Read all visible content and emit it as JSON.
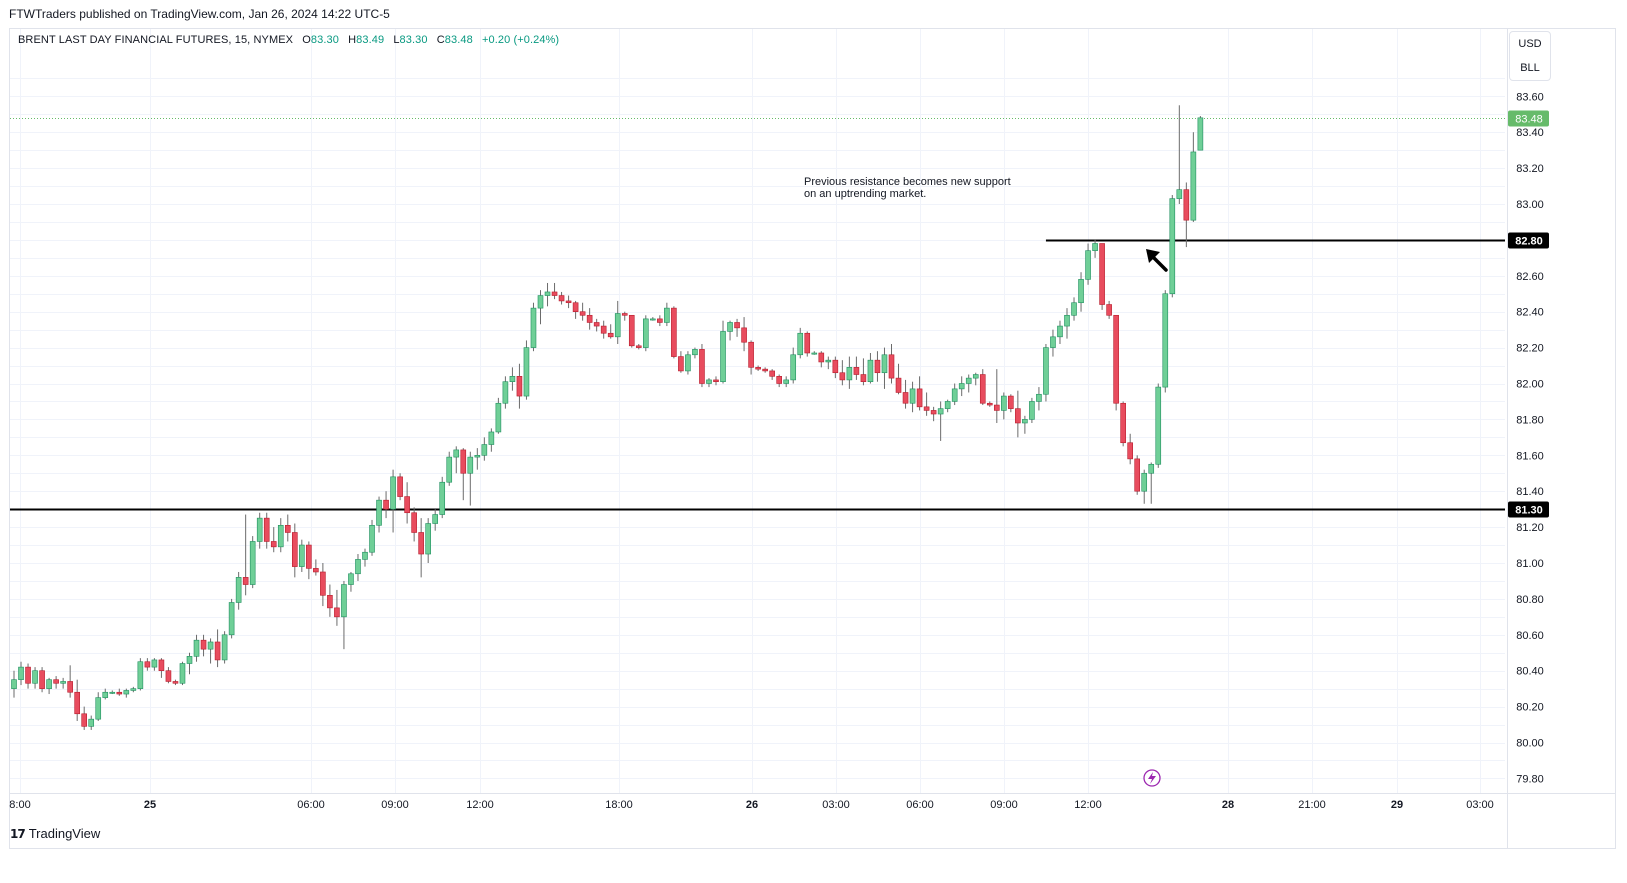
{
  "publisher_line": "FTWTraders published on TradingView.com, Jan 26, 2024 14:22 UTC-5",
  "legend": {
    "symbol": "BRENT LAST DAY FINANCIAL FUTURES, 15, NYMEX",
    "open_label": "O",
    "open": "83.30",
    "high_label": "H",
    "high": "83.49",
    "low_label": "L",
    "low": "83.30",
    "close_label": "C",
    "close": "83.48",
    "change": "+0.20 (+0.24%)"
  },
  "unit_selector": {
    "currency": "USD",
    "unit": "BLL"
  },
  "annotation": {
    "line1": "Previous resistance becomes new support",
    "line2": "on an uptrending market."
  },
  "footer": {
    "brand": "TradingView"
  },
  "colors": {
    "up": "#26a69a",
    "down": "#ef5350",
    "up_fill": "#6fcf97",
    "down_fill": "#e84c5e",
    "last_price": "#66bb6a"
  },
  "chart_data": {
    "type": "candlestick",
    "interval": "15",
    "ylim": [
      79.75,
      83.72
    ],
    "y_ticks": [
      "83.60",
      "83.40",
      "83.20",
      "83.00",
      "82.60",
      "82.40",
      "82.20",
      "82.00",
      "81.80",
      "81.60",
      "81.40",
      "81.20",
      "81.00",
      "80.80",
      "80.60",
      "80.40",
      "80.20",
      "80.00",
      "79.80"
    ],
    "x_ticks": [
      "8:00",
      "25",
      "06:00",
      "09:00",
      "12:00",
      "18:00",
      "26",
      "03:00",
      "06:00",
      "09:00",
      "12:00",
      "28",
      "21:00",
      "29",
      "03:00"
    ],
    "bold_x_ticks": [
      "25",
      "26",
      "28",
      "29"
    ],
    "horizontal_levels": [
      {
        "price": 81.3,
        "label": "81.30",
        "start_index": 0
      },
      {
        "price": 82.8,
        "label": "82.80",
        "start_index": 147
      }
    ],
    "last_price": {
      "price": 83.48,
      "label": "83.48"
    },
    "candles": [
      [
        80.3,
        80.4,
        80.25,
        80.35
      ],
      [
        80.35,
        80.45,
        80.32,
        80.42
      ],
      [
        80.42,
        80.44,
        80.3,
        80.33
      ],
      [
        80.33,
        80.42,
        80.3,
        80.4
      ],
      [
        80.4,
        80.42,
        80.28,
        80.3
      ],
      [
        80.3,
        80.36,
        80.27,
        80.35
      ],
      [
        80.35,
        80.37,
        80.3,
        80.33
      ],
      [
        80.33,
        80.36,
        80.3,
        80.34
      ],
      [
        80.34,
        80.43,
        80.25,
        80.28
      ],
      [
        80.28,
        80.35,
        80.12,
        80.16
      ],
      [
        80.16,
        80.2,
        80.07,
        80.09
      ],
      [
        80.09,
        80.15,
        80.07,
        80.13
      ],
      [
        80.13,
        80.28,
        80.12,
        80.25
      ],
      [
        80.25,
        80.3,
        80.24,
        80.28
      ],
      [
        80.28,
        80.29,
        80.27,
        80.28
      ],
      [
        80.28,
        80.3,
        80.26,
        80.27
      ],
      [
        80.27,
        80.3,
        80.25,
        80.29
      ],
      [
        80.29,
        80.31,
        80.28,
        80.3
      ],
      [
        80.3,
        80.47,
        80.29,
        80.45
      ],
      [
        80.45,
        80.47,
        80.4,
        80.42
      ],
      [
        80.42,
        80.47,
        80.4,
        80.46
      ],
      [
        80.46,
        80.47,
        80.36,
        80.4
      ],
      [
        80.4,
        80.42,
        80.33,
        80.34
      ],
      [
        80.34,
        80.35,
        80.32,
        80.33
      ],
      [
        80.33,
        80.45,
        80.32,
        80.44
      ],
      [
        80.44,
        80.5,
        80.38,
        80.48
      ],
      [
        80.48,
        80.6,
        80.45,
        80.57
      ],
      [
        80.57,
        80.6,
        80.48,
        80.52
      ],
      [
        80.52,
        80.58,
        80.44,
        80.56
      ],
      [
        80.56,
        80.63,
        80.42,
        80.46
      ],
      [
        80.46,
        80.62,
        80.44,
        80.6
      ],
      [
        80.6,
        80.8,
        80.58,
        80.78
      ],
      [
        80.78,
        80.95,
        80.74,
        80.92
      ],
      [
        80.92,
        81.27,
        80.82,
        80.88
      ],
      [
        80.88,
        81.15,
        80.86,
        81.12
      ],
      [
        81.12,
        81.28,
        81.08,
        81.25
      ],
      [
        81.25,
        81.28,
        81.08,
        81.12
      ],
      [
        81.12,
        81.2,
        81.06,
        81.09
      ],
      [
        81.09,
        81.25,
        81.06,
        81.21
      ],
      [
        81.21,
        81.27,
        81.12,
        81.17
      ],
      [
        81.17,
        81.22,
        80.92,
        80.98
      ],
      [
        80.98,
        81.13,
        80.95,
        81.1
      ],
      [
        81.1,
        81.12,
        80.91,
        80.97
      ],
      [
        80.97,
        81.02,
        80.93,
        80.95
      ],
      [
        80.95,
        81.0,
        80.76,
        80.82
      ],
      [
        80.82,
        80.88,
        80.7,
        80.75
      ],
      [
        80.75,
        80.85,
        80.65,
        80.7
      ],
      [
        80.7,
        80.9,
        80.52,
        80.88
      ],
      [
        80.88,
        80.95,
        80.84,
        80.94
      ],
      [
        80.94,
        81.05,
        80.9,
        81.02
      ],
      [
        81.02,
        81.08,
        80.98,
        81.06
      ],
      [
        81.06,
        81.24,
        81.04,
        81.21
      ],
      [
        81.21,
        81.37,
        81.17,
        81.35
      ],
      [
        81.35,
        81.4,
        81.25,
        81.3
      ],
      [
        81.3,
        81.52,
        81.17,
        81.48
      ],
      [
        81.48,
        81.5,
        81.35,
        81.37
      ],
      [
        81.37,
        81.45,
        81.22,
        81.28
      ],
      [
        81.28,
        81.31,
        81.12,
        81.17
      ],
      [
        81.17,
        81.25,
        80.92,
        81.05
      ],
      [
        81.05,
        81.25,
        81.0,
        81.22
      ],
      [
        81.22,
        81.3,
        81.18,
        81.27
      ],
      [
        81.27,
        81.48,
        81.25,
        81.45
      ],
      [
        81.45,
        81.62,
        81.43,
        81.59
      ],
      [
        81.59,
        81.65,
        81.5,
        81.63
      ],
      [
        81.63,
        81.64,
        81.35,
        81.5
      ],
      [
        81.5,
        81.62,
        81.32,
        81.59
      ],
      [
        81.59,
        81.64,
        81.52,
        81.6
      ],
      [
        81.6,
        81.7,
        81.57,
        81.66
      ],
      [
        81.66,
        81.75,
        81.62,
        81.73
      ],
      [
        81.73,
        81.92,
        81.72,
        81.89
      ],
      [
        81.89,
        82.04,
        81.86,
        82.01
      ],
      [
        82.01,
        82.09,
        81.96,
        82.04
      ],
      [
        82.04,
        82.11,
        81.86,
        81.93
      ],
      [
        81.93,
        82.24,
        81.91,
        82.2
      ],
      [
        82.2,
        82.45,
        82.18,
        82.42
      ],
      [
        82.42,
        82.52,
        82.33,
        82.49
      ],
      [
        82.49,
        82.56,
        82.43,
        82.51
      ],
      [
        82.51,
        82.56,
        82.47,
        82.49
      ],
      [
        82.49,
        82.51,
        82.44,
        82.46
      ],
      [
        82.46,
        82.49,
        82.42,
        82.45
      ],
      [
        82.45,
        82.46,
        82.36,
        82.4
      ],
      [
        82.4,
        82.45,
        82.35,
        82.38
      ],
      [
        82.38,
        82.42,
        82.3,
        82.34
      ],
      [
        82.34,
        82.36,
        82.29,
        82.32
      ],
      [
        82.32,
        82.35,
        82.25,
        82.28
      ],
      [
        82.28,
        82.33,
        82.25,
        82.26
      ],
      [
        82.26,
        82.46,
        82.22,
        82.39
      ],
      [
        82.39,
        82.4,
        82.35,
        82.38
      ],
      [
        82.38,
        82.38,
        82.2,
        82.21
      ],
      [
        82.21,
        82.22,
        82.19,
        82.2
      ],
      [
        82.2,
        82.38,
        82.18,
        82.36
      ],
      [
        82.36,
        82.37,
        82.35,
        82.36
      ],
      [
        82.36,
        82.38,
        82.32,
        82.34
      ],
      [
        82.34,
        82.45,
        82.32,
        82.42
      ],
      [
        82.42,
        82.43,
        82.14,
        82.15
      ],
      [
        82.15,
        82.18,
        82.06,
        82.07
      ],
      [
        82.07,
        82.18,
        82.05,
        82.16
      ],
      [
        82.16,
        82.2,
        82.14,
        82.19
      ],
      [
        82.19,
        82.22,
        81.98,
        82.0
      ],
      [
        82.0,
        82.03,
        81.98,
        82.02
      ],
      [
        82.02,
        82.04,
        81.99,
        82.01
      ],
      [
        82.01,
        82.35,
        82.0,
        82.29
      ],
      [
        82.29,
        82.35,
        82.24,
        82.34
      ],
      [
        82.34,
        82.36,
        82.26,
        82.31
      ],
      [
        82.31,
        82.37,
        82.18,
        82.23
      ],
      [
        82.23,
        82.24,
        82.05,
        82.09
      ],
      [
        82.09,
        82.1,
        82.07,
        82.08
      ],
      [
        82.08,
        82.09,
        82.06,
        82.07
      ],
      [
        82.07,
        82.08,
        82.02,
        82.04
      ],
      [
        82.04,
        82.05,
        81.98,
        82.0
      ],
      [
        82.0,
        82.04,
        81.98,
        82.02
      ],
      [
        82.02,
        82.2,
        82.0,
        82.16
      ],
      [
        82.16,
        82.31,
        82.14,
        82.28
      ],
      [
        82.28,
        82.29,
        82.15,
        82.17
      ],
      [
        82.17,
        82.18,
        82.16,
        82.17
      ],
      [
        82.17,
        82.18,
        82.09,
        82.12
      ],
      [
        82.12,
        82.15,
        82.08,
        82.13
      ],
      [
        82.13,
        82.15,
        82.03,
        82.06
      ],
      [
        82.06,
        82.13,
        81.99,
        82.02
      ],
      [
        82.02,
        82.15,
        81.97,
        82.09
      ],
      [
        82.09,
        82.15,
        82.02,
        82.05
      ],
      [
        82.05,
        82.14,
        81.99,
        82.01
      ],
      [
        82.01,
        82.17,
        82.0,
        82.13
      ],
      [
        82.13,
        82.18,
        82.01,
        82.06
      ],
      [
        82.06,
        82.2,
        81.97,
        82.16
      ],
      [
        82.16,
        82.22,
        82.0,
        82.03
      ],
      [
        82.03,
        82.11,
        81.94,
        81.95
      ],
      [
        81.95,
        82.02,
        81.86,
        81.89
      ],
      [
        81.89,
        82.01,
        81.84,
        81.97
      ],
      [
        81.97,
        82.04,
        81.85,
        81.87
      ],
      [
        81.87,
        81.95,
        81.82,
        81.85
      ],
      [
        81.85,
        81.87,
        81.79,
        81.83
      ],
      [
        81.83,
        81.9,
        81.68,
        81.86
      ],
      [
        81.86,
        81.91,
        81.84,
        81.9
      ],
      [
        81.9,
        82.0,
        81.88,
        81.97
      ],
      [
        81.97,
        82.04,
        81.93,
        82.0
      ],
      [
        82.0,
        82.05,
        81.95,
        82.03
      ],
      [
        82.03,
        82.06,
        81.99,
        82.05
      ],
      [
        82.05,
        82.08,
        81.88,
        81.89
      ],
      [
        81.89,
        81.9,
        81.87,
        81.88
      ],
      [
        81.88,
        82.08,
        81.78,
        81.85
      ],
      [
        81.85,
        81.95,
        81.8,
        81.93
      ],
      [
        81.93,
        81.94,
        81.84,
        81.86
      ],
      [
        81.86,
        81.96,
        81.7,
        81.78
      ],
      [
        81.78,
        81.82,
        81.72,
        81.8
      ],
      [
        81.8,
        81.92,
        81.78,
        81.9
      ],
      [
        81.9,
        81.98,
        81.85,
        81.94
      ],
      [
        81.94,
        82.22,
        81.9,
        82.2
      ],
      [
        82.2,
        82.3,
        82.15,
        82.26
      ],
      [
        82.26,
        82.35,
        82.22,
        82.32
      ],
      [
        82.32,
        82.42,
        82.25,
        82.38
      ],
      [
        82.38,
        82.48,
        82.35,
        82.45
      ],
      [
        82.45,
        82.62,
        82.4,
        82.58
      ],
      [
        82.58,
        82.78,
        82.55,
        82.74
      ],
      [
        82.74,
        82.8,
        82.7,
        82.78
      ],
      [
        82.78,
        82.78,
        82.41,
        82.44
      ],
      [
        82.44,
        82.46,
        82.36,
        82.38
      ],
      [
        82.38,
        82.38,
        81.85,
        81.89
      ],
      [
        81.89,
        81.9,
        81.65,
        81.67
      ],
      [
        81.67,
        81.72,
        81.55,
        81.58
      ],
      [
        81.58,
        81.6,
        81.38,
        81.4
      ],
      [
        81.4,
        81.52,
        81.33,
        81.5
      ],
      [
        81.5,
        81.56,
        81.33,
        81.55
      ],
      [
        81.55,
        82.0,
        81.53,
        81.98
      ],
      [
        81.98,
        82.52,
        81.95,
        82.5
      ],
      [
        82.5,
        83.05,
        82.48,
        83.03
      ],
      [
        83.03,
        83.55,
        83.0,
        83.08
      ],
      [
        83.08,
        83.12,
        82.76,
        82.91
      ],
      [
        82.91,
        83.4,
        82.9,
        83.29
      ],
      [
        83.3,
        83.49,
        83.3,
        83.48
      ]
    ]
  }
}
